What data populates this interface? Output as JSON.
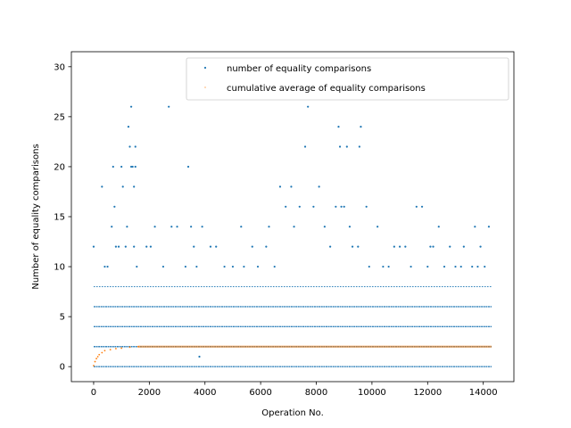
{
  "chart_data": {
    "type": "scatter",
    "title": "",
    "xlabel": "Operation No.",
    "ylabel": "Number of equality comparisons",
    "xlim": [
      -800,
      15100
    ],
    "ylim": [
      -1.5,
      31.5
    ],
    "xticks": [
      0,
      2000,
      4000,
      6000,
      8000,
      10000,
      12000,
      14000
    ],
    "yticks": [
      0,
      5,
      10,
      15,
      20,
      25,
      30
    ],
    "x_max": 14300,
    "grid": false,
    "legend_position": "top-right",
    "colors": {
      "series1": "#1f77b4",
      "series2": "#ff7f0e"
    },
    "series": [
      {
        "name": "number of equality comparisons",
        "levels_dense": [
          0,
          2,
          4,
          6,
          8
        ],
        "points": [
          [
            0,
            12
          ],
          [
            300,
            18
          ],
          [
            400,
            10
          ],
          [
            500,
            10
          ],
          [
            650,
            14
          ],
          [
            700,
            20
          ],
          [
            750,
            16
          ],
          [
            800,
            12
          ],
          [
            900,
            12
          ],
          [
            1000,
            20
          ],
          [
            1050,
            18
          ],
          [
            1150,
            12
          ],
          [
            1200,
            14
          ],
          [
            1250,
            24
          ],
          [
            1300,
            22
          ],
          [
            1350,
            26
          ],
          [
            1350,
            20
          ],
          [
            1400,
            20
          ],
          [
            1450,
            18
          ],
          [
            1450,
            12
          ],
          [
            1500,
            22
          ],
          [
            1500,
            20
          ],
          [
            1550,
            10
          ],
          [
            1900,
            12
          ],
          [
            2050,
            12
          ],
          [
            2200,
            14
          ],
          [
            2500,
            10
          ],
          [
            2700,
            26
          ],
          [
            2800,
            14
          ],
          [
            3000,
            14
          ],
          [
            3300,
            10
          ],
          [
            3400,
            20
          ],
          [
            3500,
            14
          ],
          [
            3600,
            12
          ],
          [
            3700,
            10
          ],
          [
            3800,
            1
          ],
          [
            3900,
            14
          ],
          [
            4200,
            12
          ],
          [
            4400,
            12
          ],
          [
            4700,
            10
          ],
          [
            5000,
            10
          ],
          [
            5300,
            14
          ],
          [
            5400,
            10
          ],
          [
            5700,
            12
          ],
          [
            5900,
            10
          ],
          [
            6200,
            12
          ],
          [
            6300,
            14
          ],
          [
            6500,
            10
          ],
          [
            6700,
            18
          ],
          [
            6900,
            16
          ],
          [
            7100,
            18
          ],
          [
            7200,
            14
          ],
          [
            7400,
            16
          ],
          [
            7600,
            22
          ],
          [
            7700,
            26
          ],
          [
            7900,
            16
          ],
          [
            8100,
            18
          ],
          [
            8300,
            14
          ],
          [
            8500,
            12
          ],
          [
            8700,
            16
          ],
          [
            8800,
            24
          ],
          [
            8850,
            22
          ],
          [
            8900,
            16
          ],
          [
            9000,
            16
          ],
          [
            9100,
            22
          ],
          [
            9200,
            14
          ],
          [
            9300,
            12
          ],
          [
            9500,
            12
          ],
          [
            9550,
            22
          ],
          [
            9600,
            24
          ],
          [
            9800,
            16
          ],
          [
            9900,
            10
          ],
          [
            10200,
            14
          ],
          [
            10400,
            10
          ],
          [
            10600,
            10
          ],
          [
            10800,
            12
          ],
          [
            11000,
            12
          ],
          [
            11200,
            12
          ],
          [
            11400,
            10
          ],
          [
            11600,
            16
          ],
          [
            11800,
            16
          ],
          [
            12000,
            10
          ],
          [
            12100,
            12
          ],
          [
            12200,
            12
          ],
          [
            12400,
            14
          ],
          [
            12600,
            10
          ],
          [
            12800,
            12
          ],
          [
            13000,
            10
          ],
          [
            13200,
            10
          ],
          [
            13300,
            12
          ],
          [
            13600,
            10
          ],
          [
            13700,
            14
          ],
          [
            13800,
            10
          ],
          [
            13900,
            12
          ],
          [
            14050,
            10
          ],
          [
            14200,
            14
          ]
        ]
      },
      {
        "name": "cumulative average of equality comparisons",
        "start_points": [
          [
            0,
            0.1
          ],
          [
            50,
            0.5
          ],
          [
            100,
            0.8
          ],
          [
            150,
            1.0
          ],
          [
            200,
            1.2
          ],
          [
            300,
            1.4
          ],
          [
            400,
            1.6
          ],
          [
            600,
            1.7
          ],
          [
            800,
            1.8
          ],
          [
            1000,
            1.85
          ],
          [
            1300,
            1.95
          ],
          [
            1600,
            2.0
          ]
        ],
        "plateau": 2.0
      }
    ]
  }
}
